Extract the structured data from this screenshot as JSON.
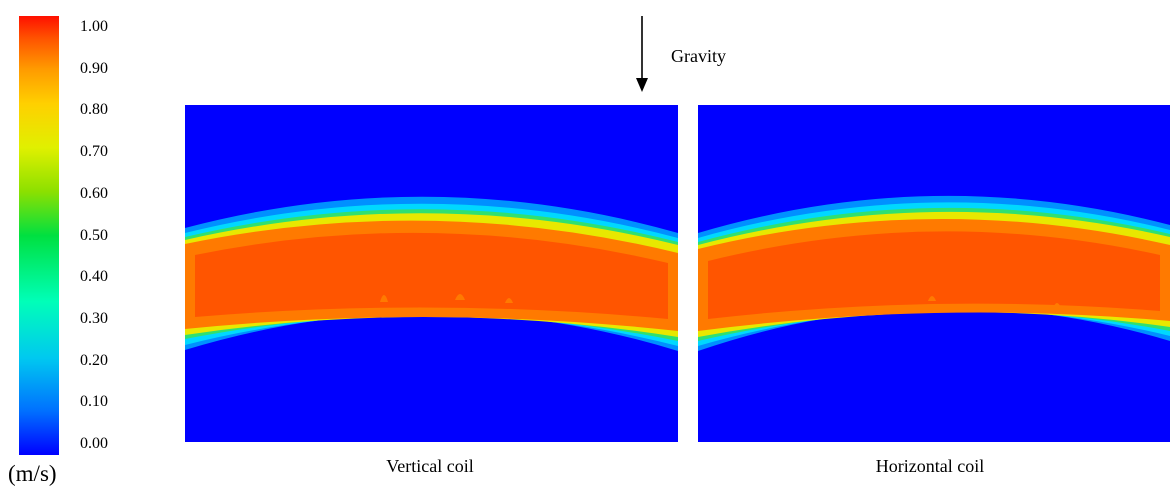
{
  "colorbar": {
    "ticks": [
      "1.00",
      "0.90",
      "0.80",
      "0.70",
      "0.60",
      "0.50",
      "0.40",
      "0.30",
      "0.20",
      "0.10",
      "0.00"
    ],
    "unit": "(m/s)",
    "min": 0.0,
    "max": 1.0,
    "colors": [
      "#0000ff",
      "#0070ff",
      "#00c8f0",
      "#00ffb8",
      "#00e040",
      "#8ce000",
      "#e0f000",
      "#ffd000",
      "#ff9a00",
      "#ff5200",
      "#ff1000"
    ]
  },
  "gravity": {
    "label": "Gravity"
  },
  "panels": [
    {
      "caption": "Vertical coil",
      "background": "#0000ff"
    },
    {
      "caption": "Horizontal coil",
      "background": "#0000ff"
    }
  ]
}
